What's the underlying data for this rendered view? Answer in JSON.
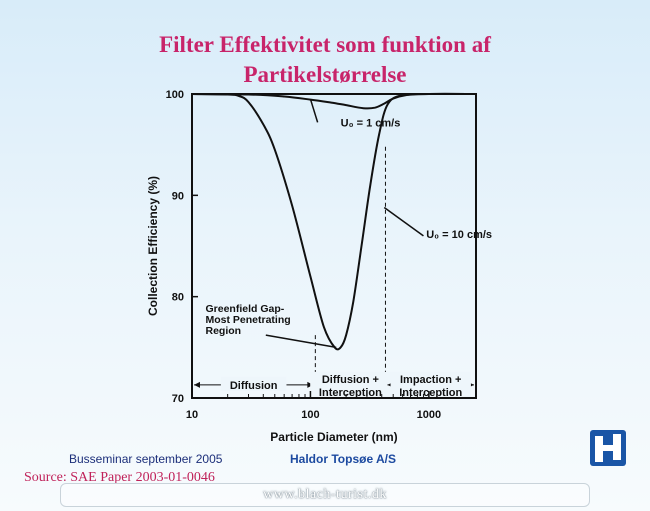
{
  "page": {
    "title_line1": "Filter Effektivitet som funktion af",
    "title_line2": "Partikelstørrelse",
    "footer_left": "Busseminar september 2005",
    "footer_mid": "Haldor Topsøe A/S",
    "source": "Source: SAE Paper 2003-01-0046",
    "watermark": "www.blach-turist.dk",
    "colors": {
      "title": "#c8246a",
      "footer": "#1c4aa0",
      "logo": "#1a55a6",
      "background": "#e3f1fa"
    },
    "logo_icon": "haldor-topsoe-logo-icon"
  },
  "chart_data": {
    "type": "line",
    "xlabel": "Particle Diameter (nm)",
    "ylabel": "Collection Efficiency (%)",
    "xscale": "log",
    "xlim": [
      10,
      2500
    ],
    "ylim": [
      70,
      100
    ],
    "xticks": [
      10,
      100,
      1000
    ],
    "xtick_labels": [
      "10",
      "100",
      "1000"
    ],
    "yticks": [
      70,
      80,
      90,
      100
    ],
    "ytick_labels": [
      "70",
      "80",
      "90",
      "100"
    ],
    "grid": false,
    "legend": "none",
    "series": [
      {
        "name": "U₀ = 1 cm/s",
        "x": [
          10,
          30,
          60,
          100,
          150,
          200,
          280,
          350,
          420,
          500,
          650,
          1000,
          2500
        ],
        "y": [
          100,
          99.95,
          99.75,
          99.45,
          99.15,
          98.9,
          98.6,
          98.65,
          99.05,
          99.55,
          99.9,
          100,
          100
        ]
      },
      {
        "name": "U₀ = 10 cm/s",
        "x": [
          10,
          20,
          25,
          30,
          40,
          50,
          70,
          100,
          130,
          160,
          180,
          200,
          230,
          270,
          320,
          380,
          450,
          600,
          1000,
          2500
        ],
        "y": [
          100,
          99.95,
          99.8,
          99.2,
          97.0,
          94.5,
          89.0,
          82.0,
          77.0,
          75.0,
          75.0,
          76.2,
          79.5,
          85.0,
          91.0,
          96.0,
          99.0,
          99.9,
          100,
          100
        ]
      }
    ],
    "annotations": [
      {
        "text": "U₀ = 1 cm/s",
        "x": 180,
        "y": 96.8
      },
      {
        "text": "U₀ = 10 cm/s",
        "x": 950,
        "y": 85.8
      },
      {
        "text": "Greenfield Gap-",
        "x": 13,
        "y": 78.5
      },
      {
        "text": "Most Penetrating",
        "x": 13,
        "y": 77.4
      },
      {
        "text": "Region",
        "x": 13,
        "y": 76.3
      }
    ],
    "regions": [
      {
        "label": "Diffusion",
        "from": 10,
        "to": 110
      },
      {
        "label": "Diffusion +",
        "label2": "Interception",
        "from": 110,
        "to": 430
      },
      {
        "label": "Impaction +",
        "label2": "Interception",
        "from": 430,
        "to": 2500
      }
    ],
    "region_boundaries": [
      110,
      430
    ],
    "region_arrow_y": 71.3,
    "greenfield_pointer": {
      "from_x": 42,
      "from_y": 76.3,
      "to_x": 165,
      "to_y": 75
    }
  }
}
